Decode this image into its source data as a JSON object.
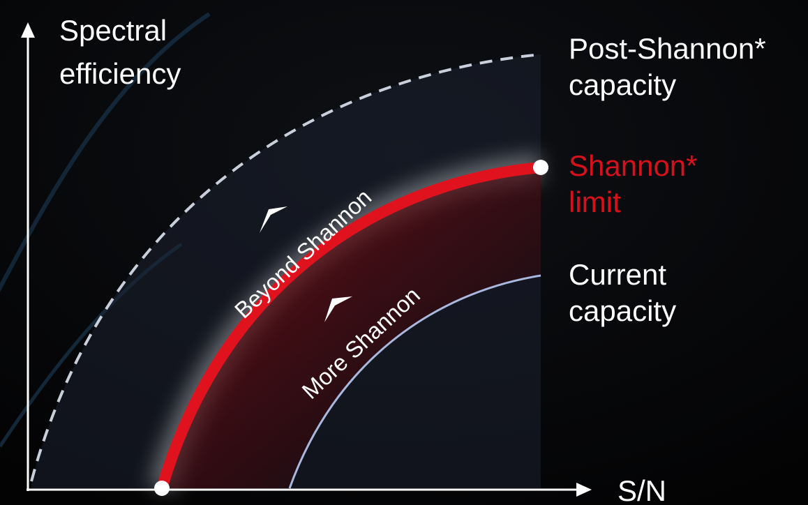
{
  "axes": {
    "y_label": [
      "Spectral",
      "efficiency"
    ],
    "x_label": "S/N"
  },
  "curves": [
    {
      "label": [
        "Post-Shannon*",
        "capacity"
      ]
    },
    {
      "label": [
        "Shannon*",
        "limit"
      ]
    },
    {
      "label": [
        "Current",
        "capacity"
      ]
    }
  ],
  "regions": [
    {
      "label": "Beyond Shannon"
    },
    {
      "label": "More Shannon"
    }
  ]
}
